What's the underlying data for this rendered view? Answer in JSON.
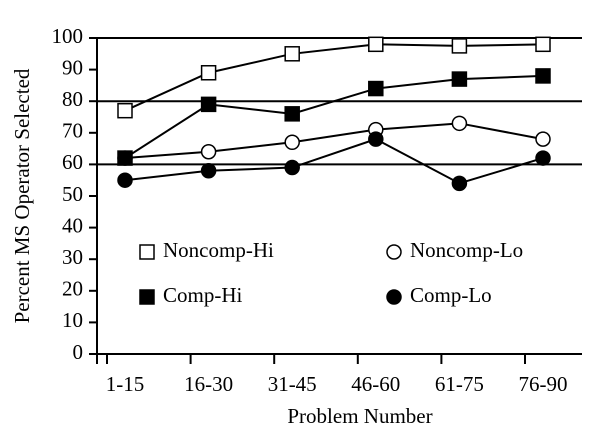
{
  "chart_data": {
    "type": "line",
    "xlabel": "Problem Number",
    "ylabel": "Percent MS Operator Selected",
    "categories": [
      "1-15",
      "16-30",
      "31-45",
      "46-60",
      "61-75",
      "76-90"
    ],
    "series": [
      {
        "name": "Noncomp-Hi",
        "color": "#000000",
        "marker": "square",
        "filled": false,
        "values": [
          77,
          89,
          95,
          98,
          97.5,
          98
        ]
      },
      {
        "name": "Noncomp-Lo",
        "color": "#000000",
        "marker": "circle",
        "filled": false,
        "values": [
          62,
          64,
          67,
          71,
          73,
          68
        ]
      },
      {
        "name": "Comp-Hi",
        "color": "#000000",
        "marker": "square",
        "filled": true,
        "values": [
          62,
          79,
          76,
          84,
          87,
          88
        ]
      },
      {
        "name": "Comp-Lo",
        "color": "#000000",
        "marker": "circle",
        "filled": true,
        "values": [
          55,
          58,
          59,
          68,
          54,
          62
        ]
      }
    ],
    "ylim": [
      0,
      100
    ],
    "yticks": [
      0,
      10,
      20,
      30,
      40,
      50,
      60,
      70,
      80,
      90,
      100
    ],
    "reference_lines": [
      60,
      80
    ],
    "legend": "lower left"
  }
}
